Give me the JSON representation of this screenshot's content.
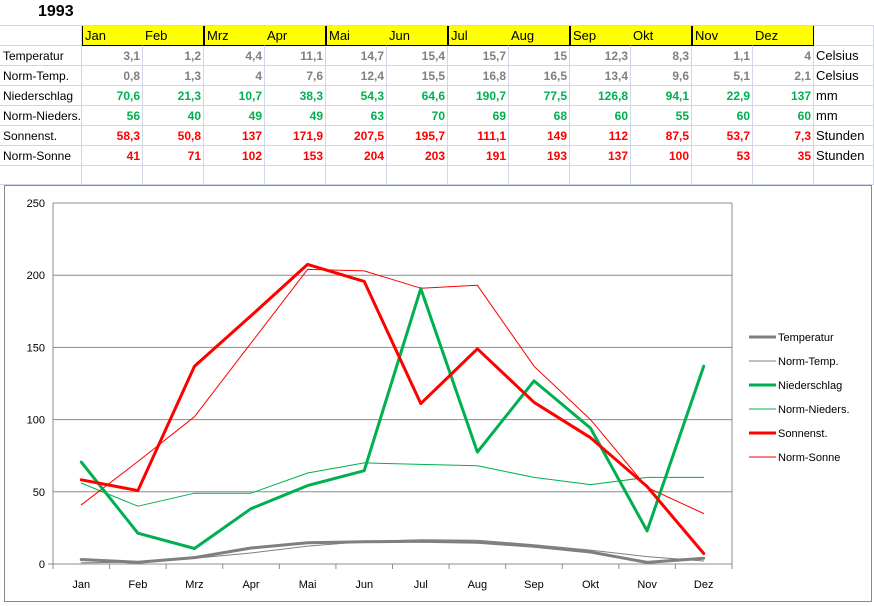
{
  "sheet": {
    "year": "1993",
    "months": [
      "Jan",
      "Feb",
      "Mrz",
      "Apr",
      "Mai",
      "Jun",
      "Jul",
      "Aug",
      "Sep",
      "Okt",
      "Nov",
      "Dez"
    ],
    "rows": [
      {
        "label": "Temperatur",
        "values": [
          "3,1",
          "1,2",
          "4,4",
          "11,1",
          "14,7",
          "15,4",
          "15,7",
          "15",
          "12,3",
          "8,3",
          "1,1",
          "4"
        ],
        "unit": "Celsius",
        "color": "#808080"
      },
      {
        "label": "Norm-Temp.",
        "values": [
          "0,8",
          "1,3",
          "4",
          "7,6",
          "12,4",
          "15,5",
          "16,8",
          "16,5",
          "13,4",
          "9,6",
          "5,1",
          "2,1"
        ],
        "unit": "Celsius",
        "color": "#808080"
      },
      {
        "label": "Niederschlag",
        "values": [
          "70,6",
          "21,3",
          "10,7",
          "38,3",
          "54,3",
          "64,6",
          "190,7",
          "77,5",
          "126,8",
          "94,1",
          "22,9",
          "137"
        ],
        "unit": "mm",
        "color": "#00b050"
      },
      {
        "label": "Norm-Nieders.",
        "values": [
          "56",
          "40",
          "49",
          "49",
          "63",
          "70",
          "69",
          "68",
          "60",
          "55",
          "60",
          "60"
        ],
        "unit": "mm",
        "color": "#00b050"
      },
      {
        "label": "Sonnenst.",
        "values": [
          "58,3",
          "50,8",
          "137",
          "171,9",
          "207,5",
          "195,7",
          "111,1",
          "149",
          "112",
          "87,5",
          "53,7",
          "7,3"
        ],
        "unit": "Stunden",
        "color": "#ff0000"
      },
      {
        "label": "Norm-Sonne",
        "values": [
          "41",
          "71",
          "102",
          "153",
          "204",
          "203",
          "191",
          "193",
          "137",
          "100",
          "53",
          "35"
        ],
        "unit": "Stunden",
        "color": "#ff0000"
      }
    ]
  },
  "chart_data": {
    "type": "line",
    "categories": [
      "Jan",
      "Feb",
      "Mrz",
      "Apr",
      "Mai",
      "Jun",
      "Jul",
      "Aug",
      "Sep",
      "Okt",
      "Nov",
      "Dez"
    ],
    "ylim": [
      0,
      250
    ],
    "yticks": [
      0,
      50,
      100,
      150,
      200,
      250
    ],
    "grid": true,
    "legend_position": "right",
    "series": [
      {
        "name": "Temperatur",
        "values": [
          3.1,
          1.2,
          4.4,
          11.1,
          14.7,
          15.4,
          15.7,
          15,
          12.3,
          8.3,
          1.1,
          4
        ],
        "color": "#7f7f7f",
        "width": 3
      },
      {
        "name": "Norm-Temp.",
        "values": [
          0.8,
          1.3,
          4,
          7.6,
          12.4,
          15.5,
          16.8,
          16.5,
          13.4,
          9.6,
          5.1,
          2.1
        ],
        "color": "#7f7f7f",
        "width": 1
      },
      {
        "name": "Niederschlag",
        "values": [
          70.6,
          21.3,
          10.7,
          38.3,
          54.3,
          64.6,
          190.7,
          77.5,
          126.8,
          94.1,
          22.9,
          137
        ],
        "color": "#00b050",
        "width": 3
      },
      {
        "name": "Norm-Nieders.",
        "values": [
          56,
          40,
          49,
          49,
          63,
          70,
          69,
          68,
          60,
          55,
          60,
          60
        ],
        "color": "#00b050",
        "width": 1
      },
      {
        "name": "Sonnenst.",
        "values": [
          58.3,
          50.8,
          137,
          171.9,
          207.5,
          195.7,
          111.1,
          149,
          112,
          87.5,
          53.7,
          7.3
        ],
        "color": "#ff0000",
        "width": 3
      },
      {
        "name": "Norm-Sonne",
        "values": [
          41,
          71,
          102,
          153,
          204,
          203,
          191,
          193,
          137,
          100,
          53,
          35
        ],
        "color": "#ff0000",
        "width": 1
      }
    ]
  }
}
